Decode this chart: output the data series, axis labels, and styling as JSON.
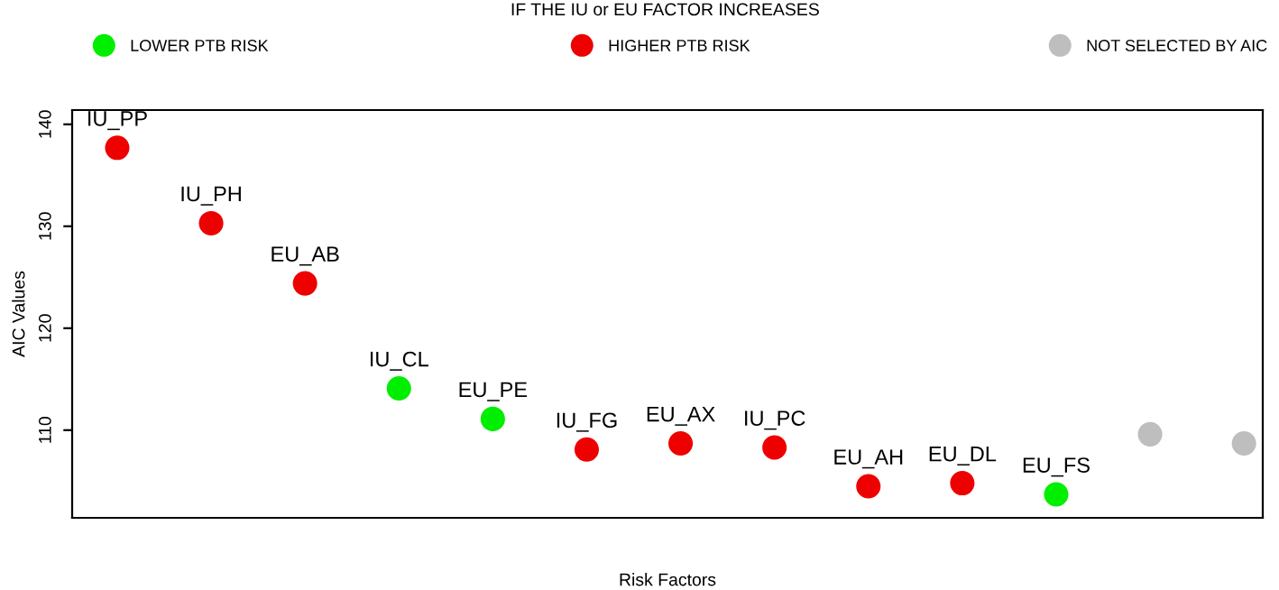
{
  "chart_data": {
    "type": "scatter",
    "xlabel": "Risk Factors",
    "ylabel": "AIC Values",
    "legend_title": "IF THE IU or EU FACTOR INCREASES",
    "categories": [
      "IU_PP",
      "IU_PH",
      "EU_AB",
      "IU_CL",
      "EU_PE",
      "IU_FG",
      "EU_AX",
      "IU_PC",
      "EU_AH",
      "EU_DL",
      "EU_FS",
      null,
      null
    ],
    "series": [
      {
        "name": "LOWER PTB RISK",
        "color": "#00ee00",
        "values": [
          null,
          null,
          null,
          114.1,
          111.1,
          null,
          null,
          null,
          null,
          null,
          103.7,
          null,
          null
        ]
      },
      {
        "name": "HIGHER PTB RISK",
        "color": "#ee0000",
        "values": [
          137.7,
          130.3,
          124.4,
          null,
          null,
          108.1,
          108.7,
          108.3,
          104.5,
          104.8,
          null,
          null,
          null
        ]
      },
      {
        "name": "NOT SELECTED BY AIC",
        "color": "#bebebe",
        "values": [
          null,
          null,
          null,
          null,
          null,
          null,
          null,
          null,
          null,
          null,
          null,
          109.6,
          108.7
        ]
      }
    ],
    "ylim": [
      101.4,
      141.4
    ],
    "yticks": [
      110,
      120,
      130,
      140
    ],
    "tick_labels": "y",
    "grid": false,
    "legend": "top",
    "marker": "circle"
  }
}
